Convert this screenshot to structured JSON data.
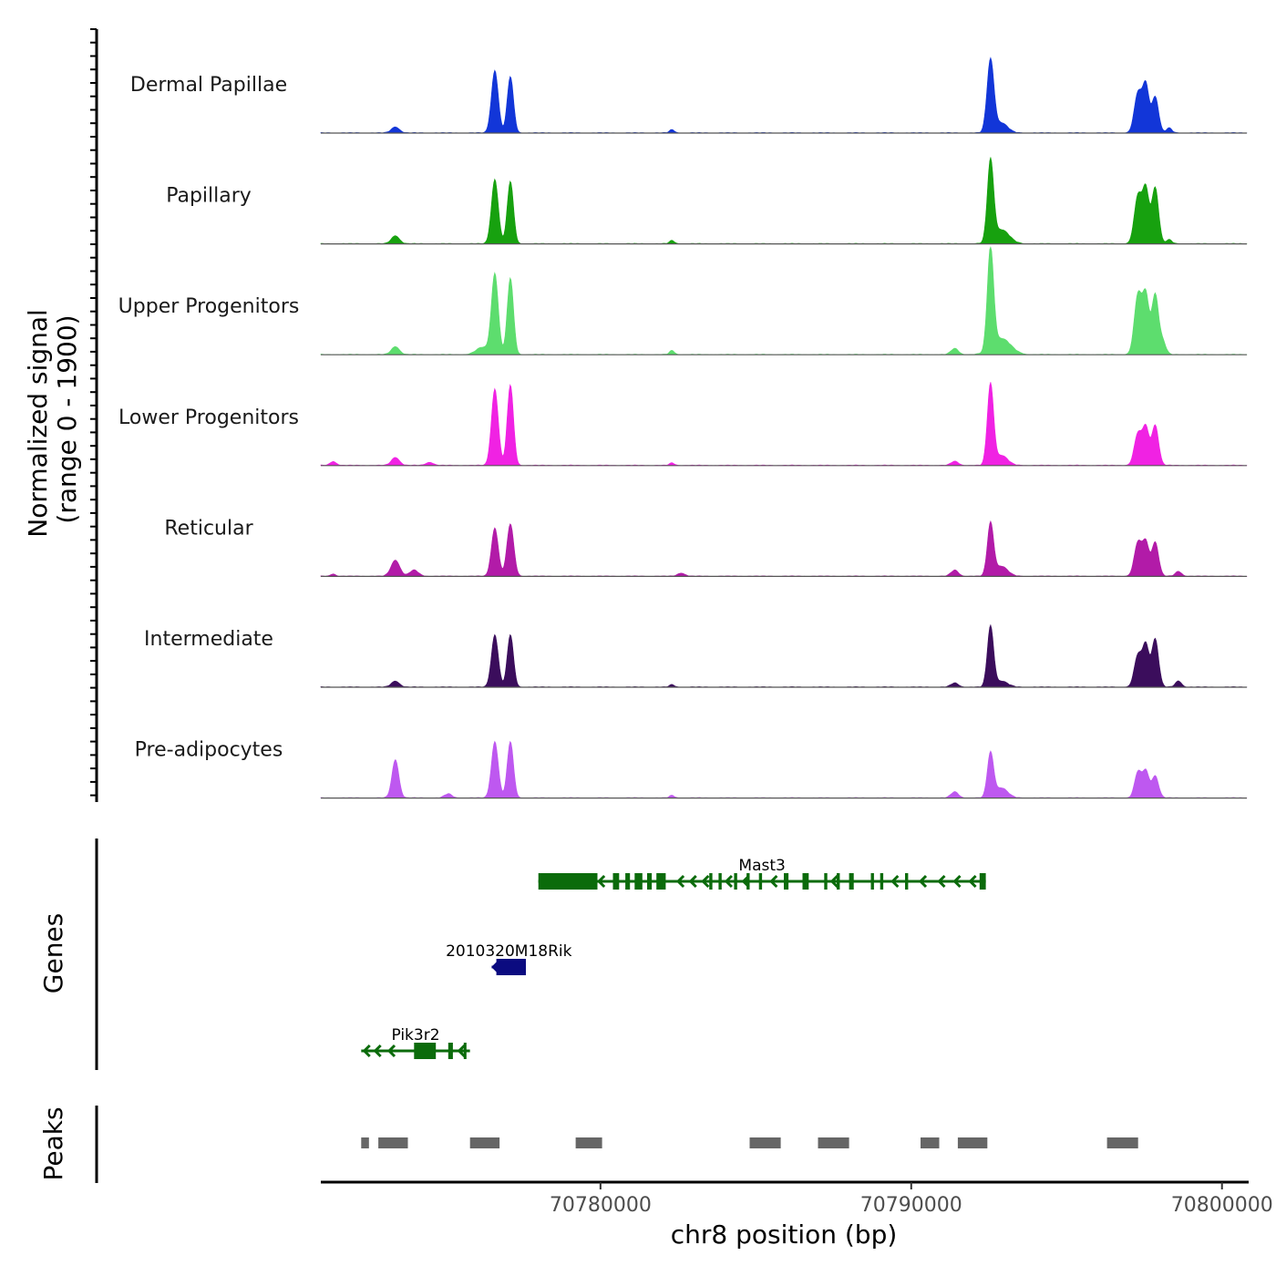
{
  "chart_data": {
    "type": "area",
    "title": "",
    "chromosome": "chr8",
    "xlabel": "chr8 position (bp)",
    "ylabel_line1": "Normalized signal",
    "ylabel_line2": "(range 0 - 1900)",
    "ylim": [
      0,
      1900
    ],
    "xlim": [
      70771000,
      70800800
    ],
    "x_ticks": [
      70780000,
      70790000,
      70800000
    ],
    "x_tick_labels": [
      "70780000",
      "70790000",
      "70800000"
    ],
    "genes_label": "Genes",
    "peaks_label": "Peaks",
    "peak_components_note": "each track = sum of gaussian peaks [center_bp, height, width_bp]",
    "tracks": [
      {
        "name": "Dermal Papillae",
        "color": "#1236d8",
        "peaks": [
          [
            70773400,
            150,
            130
          ],
          [
            70776600,
            1550,
            110
          ],
          [
            70777100,
            1400,
            100
          ],
          [
            70782300,
            80,
            80
          ],
          [
            70792550,
            1800,
            110
          ],
          [
            70792900,
            250,
            200
          ],
          [
            70797300,
            1000,
            120
          ],
          [
            70797550,
            1150,
            100
          ],
          [
            70797850,
            900,
            110
          ],
          [
            70798300,
            120,
            90
          ]
        ]
      },
      {
        "name": "Papillary",
        "color": "#17a10f",
        "peaks": [
          [
            70773400,
            200,
            130
          ],
          [
            70776600,
            1600,
            110
          ],
          [
            70777100,
            1550,
            100
          ],
          [
            70782300,
            80,
            80
          ],
          [
            70792550,
            2000,
            100
          ],
          [
            70792900,
            350,
            250
          ],
          [
            70797300,
            1200,
            120
          ],
          [
            70797550,
            1300,
            100
          ],
          [
            70797850,
            1400,
            110
          ],
          [
            70798300,
            100,
            90
          ]
        ]
      },
      {
        "name": "Upper Progenitors",
        "color": "#5ddd6e",
        "peaks": [
          [
            70773400,
            200,
            130
          ],
          [
            70776200,
            180,
            200
          ],
          [
            70776600,
            2000,
            110
          ],
          [
            70777100,
            1900,
            100
          ],
          [
            70782300,
            100,
            80
          ],
          [
            70791400,
            150,
            120
          ],
          [
            70792550,
            2500,
            100
          ],
          [
            70792900,
            400,
            300
          ],
          [
            70797300,
            1500,
            120
          ],
          [
            70797550,
            1400,
            100
          ],
          [
            70797850,
            1500,
            110
          ],
          [
            70798100,
            300,
            100
          ]
        ]
      },
      {
        "name": "Lower Progenitors",
        "color": "#f022e3",
        "peaks": [
          [
            70771400,
            100,
            100
          ],
          [
            70773400,
            200,
            130
          ],
          [
            70774500,
            80,
            120
          ],
          [
            70776600,
            1900,
            110
          ],
          [
            70777100,
            2000,
            100
          ],
          [
            70782300,
            60,
            80
          ],
          [
            70791400,
            100,
            120
          ],
          [
            70792550,
            2000,
            100
          ],
          [
            70792900,
            250,
            200
          ],
          [
            70797300,
            800,
            120
          ],
          [
            70797550,
            900,
            100
          ],
          [
            70797850,
            1000,
            110
          ]
        ]
      },
      {
        "name": "Reticular",
        "color": "#b21ba8",
        "peaks": [
          [
            70771400,
            60,
            80
          ],
          [
            70773400,
            400,
            140
          ],
          [
            70774000,
            150,
            140
          ],
          [
            70776600,
            1200,
            110
          ],
          [
            70777100,
            1300,
            110
          ],
          [
            70782600,
            80,
            120
          ],
          [
            70791400,
            150,
            120
          ],
          [
            70792550,
            1300,
            100
          ],
          [
            70792900,
            250,
            200
          ],
          [
            70797300,
            850,
            120
          ],
          [
            70797550,
            800,
            100
          ],
          [
            70797850,
            850,
            110
          ],
          [
            70798600,
            120,
            100
          ]
        ]
      },
      {
        "name": "Intermediate",
        "color": "#3b0d5c",
        "peaks": [
          [
            70773400,
            150,
            130
          ],
          [
            70776600,
            1300,
            110
          ],
          [
            70777100,
            1300,
            100
          ],
          [
            70782300,
            60,
            80
          ],
          [
            70791400,
            100,
            120
          ],
          [
            70792550,
            1500,
            100
          ],
          [
            70792900,
            150,
            200
          ],
          [
            70797300,
            800,
            120
          ],
          [
            70797550,
            1000,
            100
          ],
          [
            70797850,
            1200,
            110
          ],
          [
            70798600,
            150,
            100
          ]
        ]
      },
      {
        "name": "Pre-adipocytes",
        "color": "#be58f0",
        "peaks": [
          [
            70773400,
            950,
            110
          ],
          [
            70775100,
            100,
            120
          ],
          [
            70776600,
            1400,
            110
          ],
          [
            70777100,
            1400,
            100
          ],
          [
            70782300,
            60,
            80
          ],
          [
            70791400,
            150,
            120
          ],
          [
            70792550,
            1100,
            100
          ],
          [
            70792900,
            250,
            200
          ],
          [
            70797300,
            650,
            110
          ],
          [
            70797550,
            650,
            100
          ],
          [
            70797850,
            550,
            110
          ]
        ]
      }
    ],
    "genes": [
      {
        "name": "Mast3",
        "strand": "-",
        "start": 70778000,
        "end": 70792400,
        "color": "#0b6b0b",
        "blocks": [
          [
            70778000,
            70779900
          ],
          [
            70780400,
            70780600
          ],
          [
            70780800,
            70780950
          ],
          [
            70781100,
            70781350
          ],
          [
            70781500,
            70781650
          ],
          [
            70781800,
            70782100
          ],
          [
            70783500,
            70783600
          ],
          [
            70783800,
            70783900
          ],
          [
            70784300,
            70784400
          ],
          [
            70784700,
            70784800
          ],
          [
            70785100,
            70785200
          ],
          [
            70785900,
            70786050
          ],
          [
            70786500,
            70786700
          ],
          [
            70787200,
            70787300
          ],
          [
            70787600,
            70787700
          ],
          [
            70788000,
            70788150
          ],
          [
            70788700,
            70788800
          ],
          [
            70789000,
            70789100
          ],
          [
            70789800,
            70789900
          ],
          [
            70792200,
            70792400
          ]
        ],
        "arrows": [
          70779950,
          70782500,
          70782900,
          70783300,
          70784050,
          70784600,
          70785500,
          70787450,
          70789400,
          70790300,
          70790900,
          70791400,
          70791900
        ]
      },
      {
        "name": "2010320M18Rik",
        "strand": "-",
        "start": 70776500,
        "end": 70777600,
        "color": "#0b0b80",
        "blocks": [
          [
            70776650,
            70777600
          ]
        ],
        "arrows": [
          70776550
        ]
      },
      {
        "name": "Pik3r2",
        "strand": "-",
        "start": 70772300,
        "end": 70775800,
        "color": "#0b6b0b",
        "blocks": [
          [
            70774000,
            70774700
          ],
          [
            70775100,
            70775250
          ],
          [
            70775600,
            70775680
          ]
        ],
        "arrows": [
          70772400,
          70772750,
          70773200,
          70775450
        ]
      }
    ],
    "peaks": [
      [
        70772300,
        70772550
      ],
      [
        70772850,
        70773800
      ],
      [
        70775800,
        70776750
      ],
      [
        70779200,
        70780050
      ],
      [
        70784800,
        70785800
      ],
      [
        70787000,
        70788000
      ],
      [
        70790300,
        70790900
      ],
      [
        70791500,
        70792450
      ],
      [
        70796300,
        70797300
      ]
    ]
  }
}
